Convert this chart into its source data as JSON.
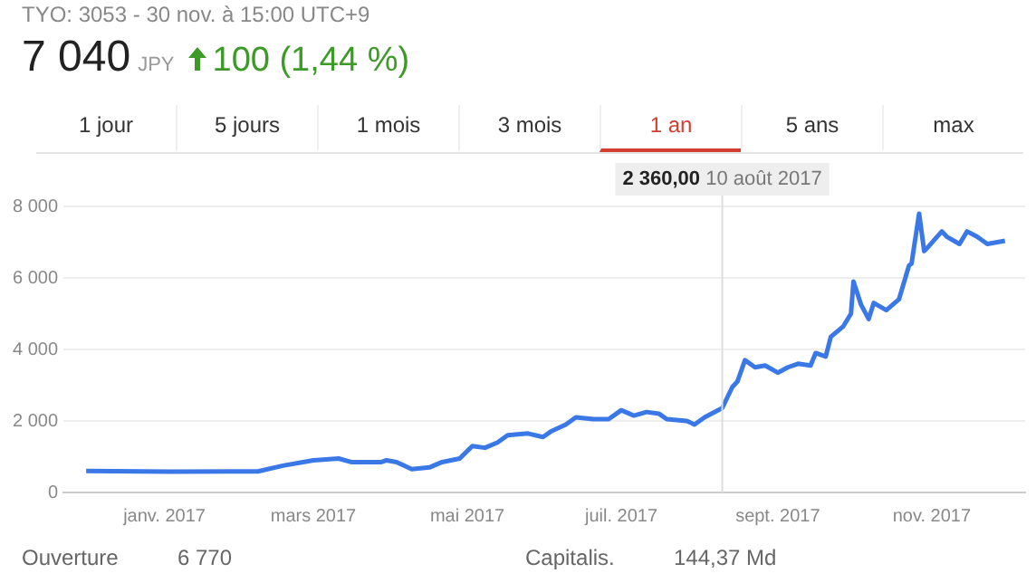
{
  "chart_data": {
    "type": "line",
    "title": "TYO: 3053 - 30 nov. à 15:00 UTC+9",
    "subtitle": "7 040 JPY 100 (1,44 %)",
    "annotations": [
      "1 jour",
      "5 jours",
      "1 mois",
      "3 mois",
      "1 an",
      "5 ans",
      "max",
      "Ouverture",
      "6 770",
      "Capitalis.",
      "144,37 Md"
    ],
    "x": [
      "2016-12-01",
      "2017-01-04",
      "2017-02-07",
      "2017-02-17",
      "2017-03-01",
      "2017-03-11",
      "2017-03-16",
      "2017-03-28",
      "2017-03-30",
      "2017-04-03",
      "2017-04-09",
      "2017-04-16",
      "2017-04-21",
      "2017-04-28",
      "2017-05-03",
      "2017-05-08",
      "2017-05-13",
      "2017-05-17",
      "2017-05-25",
      "2017-05-31",
      "2017-06-03",
      "2017-06-09",
      "2017-06-13",
      "2017-06-20",
      "2017-06-26",
      "2017-07-01",
      "2017-07-06",
      "2017-07-11",
      "2017-07-16",
      "2017-07-19",
      "2017-07-27",
      "2017-07-30",
      "2017-08-03",
      "2017-08-10",
      "2017-08-14",
      "2017-08-16",
      "2017-08-19",
      "2017-08-23",
      "2017-08-27",
      "2017-09-01",
      "2017-09-05",
      "2017-09-09",
      "2017-09-14",
      "2017-09-16",
      "2017-09-20",
      "2017-09-22",
      "2017-09-27",
      "2017-09-30",
      "2017-10-01",
      "2017-10-04",
      "2017-10-07",
      "2017-10-09",
      "2017-10-14",
      "2017-10-19",
      "2017-10-23",
      "2017-10-24",
      "2017-10-27",
      "2017-10-29",
      "2017-10-31",
      "2017-11-05",
      "2017-11-07",
      "2017-11-12",
      "2017-11-15",
      "2017-11-19",
      "2017-11-23",
      "2017-11-30"
    ],
    "series": [
      {
        "color": "#3b78e7",
        "values": [
          600,
          580,
          590,
          750,
          900,
          950,
          850,
          850,
          900,
          850,
          650,
          700,
          850,
          950,
          1300,
          1250,
          1400,
          1600,
          1650,
          1550,
          1700,
          1900,
          2100,
          2050,
          2050,
          2300,
          2150,
          2250,
          2200,
          2050,
          2000,
          1900,
          2100,
          2360,
          2950,
          3100,
          3700,
          3500,
          3550,
          3350,
          3500,
          3600,
          3550,
          3900,
          3800,
          4350,
          4650,
          5000,
          5900,
          5250,
          4850,
          5300,
          5100,
          5400,
          6350,
          6400,
          7800,
          6750,
          6900,
          7300,
          7150,
          6950,
          7300,
          7150,
          6950,
          7040
        ]
      }
    ],
    "xlim": [
      "2016-11-22",
      "2017-12-08"
    ],
    "xticks": [
      {
        "value": "2017-01-01",
        "label": "janv. 2017"
      },
      {
        "value": "2017-03-01",
        "label": "mars 2017"
      },
      {
        "value": "2017-05-01",
        "label": "mai 2017"
      },
      {
        "value": "2017-07-01",
        "label": "juil. 2017"
      },
      {
        "value": "2017-09-01",
        "label": "sept. 2017"
      },
      {
        "value": "2017-11-01",
        "label": "nov. 2017"
      }
    ],
    "ylim": [
      0,
      8000
    ],
    "yticks": [
      0,
      {
        "value": 2000,
        "label": "2 000"
      },
      {
        "value": 4000,
        "label": "4 000"
      },
      {
        "value": 6000,
        "label": "6 000"
      },
      {
        "value": 8000,
        "label": "8 000"
      }
    ],
    "ref_lines": [
      {
        "axis": "x",
        "value": "2017-08-10",
        "label": "2 360,00 10 août 2017",
        "color": "#dddddd"
      }
    ],
    "grid": "y",
    "legend": false,
    "marker": "none",
    "line_style": "solid"
  }
}
